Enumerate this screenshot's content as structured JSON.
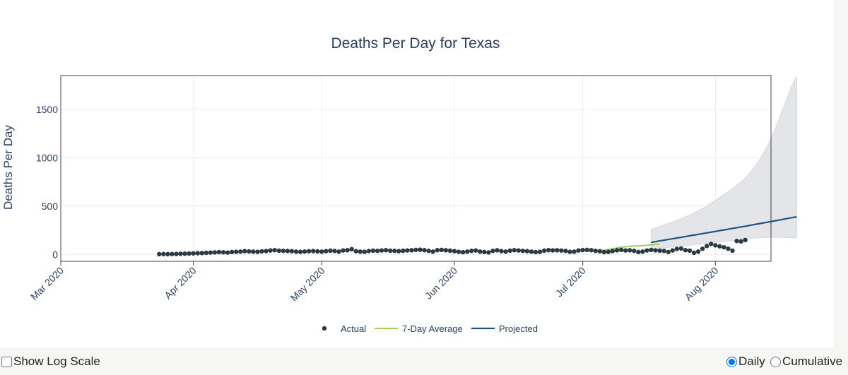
{
  "chart_data": {
    "type": "line",
    "title": "Deaths Per Day for Texas",
    "ylabel": "Deaths Per Day",
    "xlabel": "",
    "ylim": [
      -70,
      1850
    ],
    "yticks": [
      0,
      500,
      1000,
      1500
    ],
    "xticks": [
      {
        "label": "Mar 2020",
        "day": 0
      },
      {
        "label": "Apr 2020",
        "day": 31
      },
      {
        "label": "May 2020",
        "day": 61
      },
      {
        "label": "Jun 2020",
        "day": 92
      },
      {
        "label": "Jul 2020",
        "day": 122
      },
      {
        "label": "Aug 2020",
        "day": 153
      }
    ],
    "xlim_days": [
      0,
      166
    ],
    "legend": {
      "placement": "bottom-center",
      "entries": [
        "Actual",
        "7-Day Average",
        "Projected"
      ]
    },
    "series": [
      {
        "name": "Actual",
        "start_day": 23,
        "values": [
          4,
          5,
          4,
          5,
          6,
          8,
          9,
          10,
          12,
          14,
          15,
          18,
          20,
          22,
          25,
          23,
          20,
          26,
          28,
          30,
          35,
          32,
          30,
          28,
          33,
          36,
          42,
          45,
          40,
          38,
          37,
          35,
          30,
          28,
          31,
          34,
          36,
          33,
          30,
          35,
          40,
          37,
          30,
          42,
          45,
          55,
          35,
          30,
          28,
          36,
          40,
          38,
          42,
          45,
          40,
          38,
          35,
          39,
          42,
          44,
          48,
          50,
          45,
          38,
          30,
          45,
          48,
          44,
          40,
          35,
          28,
          24,
          30,
          38,
          42,
          30,
          26,
          22,
          38,
          44,
          35,
          30,
          40,
          45,
          42,
          38,
          35,
          30,
          25,
          28,
          40,
          45,
          43,
          44,
          41,
          38,
          28,
          30,
          42,
          46,
          48,
          45,
          38,
          34,
          25,
          28,
          36,
          44,
          48,
          42,
          44,
          38,
          26,
          30,
          42,
          48,
          43,
          40,
          38,
          26,
          42,
          58,
          62,
          45,
          40,
          18,
          30,
          60,
          88,
          110,
          95,
          85,
          75,
          60,
          40,
          140,
          135,
          150
        ]
      },
      {
        "name": "7-Day Average",
        "start_day": 124,
        "values": [
          40,
          40,
          42,
          45,
          52,
          60,
          68,
          75,
          80,
          85,
          88,
          90,
          92,
          96,
          100,
          104,
          108
        ]
      },
      {
        "name": "Projected",
        "start_day": 138,
        "mean": [
          125,
          133,
          141,
          148,
          156,
          163,
          171,
          178,
          186,
          194,
          201,
          209,
          216,
          224,
          231,
          239,
          247,
          254,
          262,
          270,
          277,
          285,
          293,
          301,
          309,
          317,
          325,
          333,
          341,
          349,
          357,
          366,
          374,
          382,
          390
        ],
        "upper": [
          260,
          275,
          290,
          305,
          320,
          335,
          352,
          370,
          390,
          410,
          430,
          452,
          476,
          502,
          530,
          560,
          590,
          620,
          650,
          682,
          715,
          750,
          790,
          840,
          900,
          960,
          1030,
          1110,
          1200,
          1300,
          1410,
          1530,
          1650,
          1760,
          1840
        ],
        "lower": [
          58,
          62,
          66,
          70,
          74,
          78,
          82,
          86,
          90,
          95,
          100,
          105,
          110,
          115,
          120,
          125,
          130,
          135,
          140,
          145,
          150,
          155,
          160,
          165,
          170,
          172,
          174,
          176,
          178,
          180,
          178,
          176,
          174,
          172,
          170
        ]
      }
    ]
  },
  "controls": {
    "log_scale_label": "Show Log Scale",
    "daily_label": "Daily",
    "cumulative_label": "Cumulative"
  },
  "colors": {
    "actual": "#2b3a42",
    "average": "#a4cc5e",
    "projected": "#1f5580",
    "band": "#e3e5e8",
    "text": "#2a3f5f",
    "grid": "#ececec"
  }
}
